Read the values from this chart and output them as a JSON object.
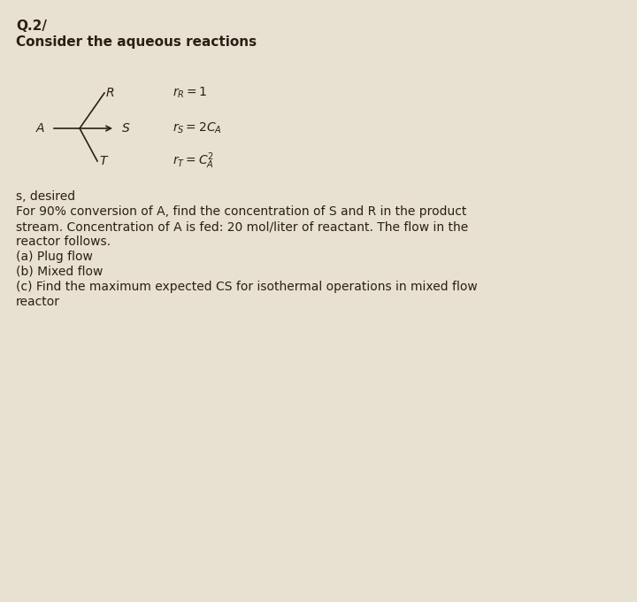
{
  "background_color": "#e8e0d0",
  "title_line1": "Q.2/",
  "title_line2": "Consider the aqueous reactions",
  "body_lines": [
    "s, desired",
    "For 90% conversion of A, find the concentration of S and R in the product",
    "stream. Concentration of A is fed: 20 mol/liter of reactant. The flow in the",
    "reactor follows.",
    "(a) Plug flow",
    "(b) Mixed flow",
    "(c) Find the maximum expected CS for isothermal operations in mixed flow",
    "reactor"
  ],
  "r_R_text": "r_R=1",
  "r_S_text": "r_S=2C_A",
  "r_T_text": "r_T=C_A^2",
  "A_label": "A",
  "S_label": "S",
  "R_label": "R",
  "T_label": "T",
  "text_color": "#2a2015",
  "font_size_title": 11,
  "font_size_body": 10,
  "font_size_scheme": 10
}
